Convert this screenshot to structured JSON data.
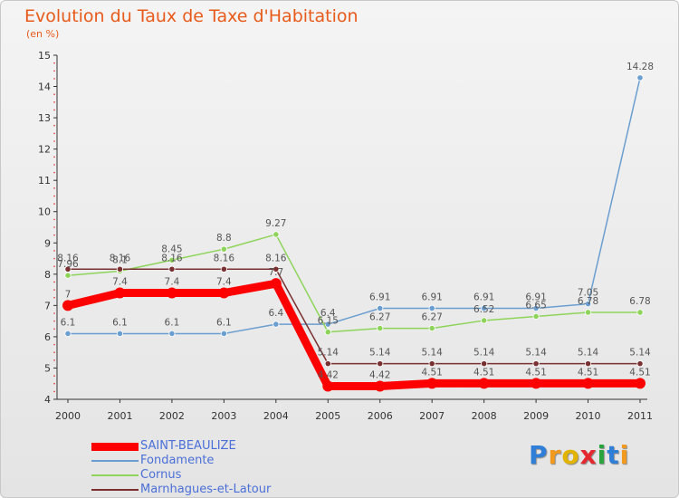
{
  "title": "Evolution du Taux de Taxe d'Habitation",
  "subtitle": "(en %)",
  "brand": {
    "name": "Proxiti",
    "letters": [
      "P",
      "r",
      "o",
      "x",
      "i",
      "t",
      "i"
    ],
    "colors": [
      "#2f7ed8",
      "#f29a1f",
      "#e2b400",
      "#e5282f",
      "#29a33c",
      "#2f7ed8",
      "#f29a1f"
    ]
  },
  "chart_data": {
    "type": "line",
    "x": [
      2000,
      2001,
      2002,
      2003,
      2004,
      2005,
      2006,
      2007,
      2008,
      2009,
      2010,
      2011
    ],
    "ylim": [
      4,
      15
    ],
    "yticks": [
      4,
      5,
      6,
      7,
      8,
      9,
      10,
      11,
      12,
      13,
      14,
      15
    ],
    "grid": false,
    "legend": "bottom-left",
    "series": [
      {
        "name": "SAINT-BEAULIZE",
        "color": "#ff0000",
        "values": [
          7,
          7.4,
          7.4,
          7.4,
          7.7,
          4.42,
          4.42,
          4.51,
          4.51,
          4.51,
          4.51,
          4.51
        ],
        "labels": [
          "7",
          "7.4",
          "7.4",
          "7.4",
          "7.7",
          "4.42",
          "4.42",
          "4.51",
          "4.51",
          "4.51",
          "4.51",
          "4.51"
        ]
      },
      {
        "name": "Fondamente",
        "color": "#6a9ed0",
        "values": [
          6.1,
          6.1,
          6.1,
          6.1,
          6.4,
          6.4,
          6.91,
          6.91,
          6.91,
          6.91,
          7.05,
          14.28
        ],
        "labels": [
          "6.1",
          "6.1",
          "6.1",
          "6.1",
          "6.4",
          "6.4",
          "6.91",
          "6.91",
          "6.91",
          "6.91",
          "7.05",
          "14.28"
        ]
      },
      {
        "name": "Cornus",
        "color": "#8ed45a",
        "values": [
          7.96,
          8.1,
          8.45,
          8.8,
          9.27,
          6.15,
          6.27,
          6.27,
          6.52,
          6.65,
          6.78,
          6.78
        ],
        "labels": [
          "7.96",
          "8.1",
          "8.45",
          "8.8",
          "9.27",
          "6.15",
          "6.27",
          "6.27",
          "6.52",
          "6.65",
          "6.78",
          "6.78"
        ]
      },
      {
        "name": "Marnhagues-et-Latour",
        "color": "#7a3030",
        "values": [
          8.16,
          8.16,
          8.16,
          8.16,
          8.16,
          5.14,
          5.14,
          5.14,
          5.14,
          5.14,
          5.14,
          5.14
        ],
        "labels": [
          "8.16",
          "8.16",
          "8.16",
          "8.16",
          "8.16",
          "5.14",
          "5.14",
          "5.14",
          "5.14",
          "5.14",
          "5.14",
          "5.14"
        ]
      }
    ]
  }
}
